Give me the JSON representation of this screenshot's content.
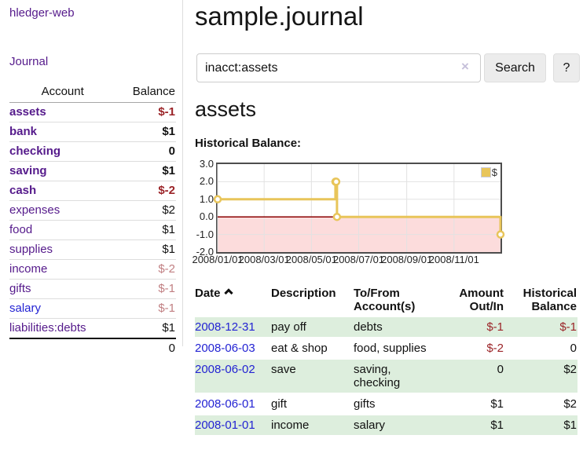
{
  "app": {
    "brand": "hledger-web"
  },
  "colors": {
    "purple": "#551a8b",
    "blue": "#2323d3",
    "negative": "#9b2428",
    "negative_soft": "#c17f82",
    "green_row": "#ddeedd",
    "pink_area": "#fcdcdc",
    "gold_line": "#e8c55a",
    "zero_line": "#8b0000"
  },
  "sidebar": {
    "nav": {
      "journal": "Journal"
    },
    "table": {
      "account_header": "Account",
      "balance_header": "Balance",
      "rows": [
        {
          "account": "assets",
          "balance": "$-1"
        },
        {
          "account": "bank",
          "balance": "$1"
        },
        {
          "account": "checking",
          "balance": "0"
        },
        {
          "account": "saving",
          "balance": "$1"
        },
        {
          "account": "cash",
          "balance": "$-2"
        },
        {
          "account": "expenses",
          "balance": "$2"
        },
        {
          "account": "food",
          "balance": "$1"
        },
        {
          "account": "supplies",
          "balance": "$1"
        },
        {
          "account": "income",
          "balance": "$-2"
        },
        {
          "account": "gifts",
          "balance": "$-1"
        },
        {
          "account": "salary",
          "balance": "$-1"
        },
        {
          "account": "liabilities:debts",
          "balance": "$1"
        }
      ],
      "total": "0"
    }
  },
  "main": {
    "title": "sample.journal",
    "search": {
      "value": "inacct:assets",
      "clear_icon": "×",
      "search_button": "Search",
      "help_button": "?"
    },
    "account_heading": "assets",
    "chart_label": "Historical Balance:"
  },
  "chart_data": {
    "type": "line",
    "step": true,
    "series": [
      {
        "name": "$",
        "x": [
          "2008-01-01",
          "2008-06-01",
          "2008-06-02",
          "2008-06-03",
          "2008-12-31"
        ],
        "y": [
          1,
          2,
          2,
          0,
          -1
        ]
      }
    ],
    "xticks": [
      "2008/01/01",
      "2008/03/01",
      "2008/05/01",
      "2008/07/01",
      "2008/09/01",
      "2008/11/01"
    ],
    "yticks": [
      "3.0",
      "2.0",
      "1.0",
      "0.0",
      "-1.0",
      "-2.0"
    ],
    "ylim": [
      -2,
      3
    ],
    "grid": true,
    "legend": {
      "label": "$",
      "position": "top-right"
    },
    "colors": {
      "line": "#e8c55a",
      "negative_area": "#fcdcdc",
      "zero_line": "#8b0000",
      "grid": "#e2e2e2"
    }
  },
  "register": {
    "headers": {
      "date": "Date",
      "description": "Description",
      "tofrom": "To/From Account(s)",
      "amount": "Amount Out/In",
      "balance": "Historical Balance"
    },
    "sort_icon": "chevron-up",
    "rows": [
      {
        "date": "2008-12-31",
        "description": "pay off",
        "accounts": "debts",
        "amount": "$-1",
        "balance": "$-1"
      },
      {
        "date": "2008-06-03",
        "description": "eat & shop",
        "accounts": "food, supplies",
        "amount": "$-2",
        "balance": "0"
      },
      {
        "date": "2008-06-02",
        "description": "save",
        "accounts": "saving, checking",
        "amount": "0",
        "balance": "$2"
      },
      {
        "date": "2008-06-01",
        "description": "gift",
        "accounts": "gifts",
        "amount": "$1",
        "balance": "$2"
      },
      {
        "date": "2008-01-01",
        "description": "income",
        "accounts": "salary",
        "amount": "$1",
        "balance": "$1"
      }
    ]
  }
}
